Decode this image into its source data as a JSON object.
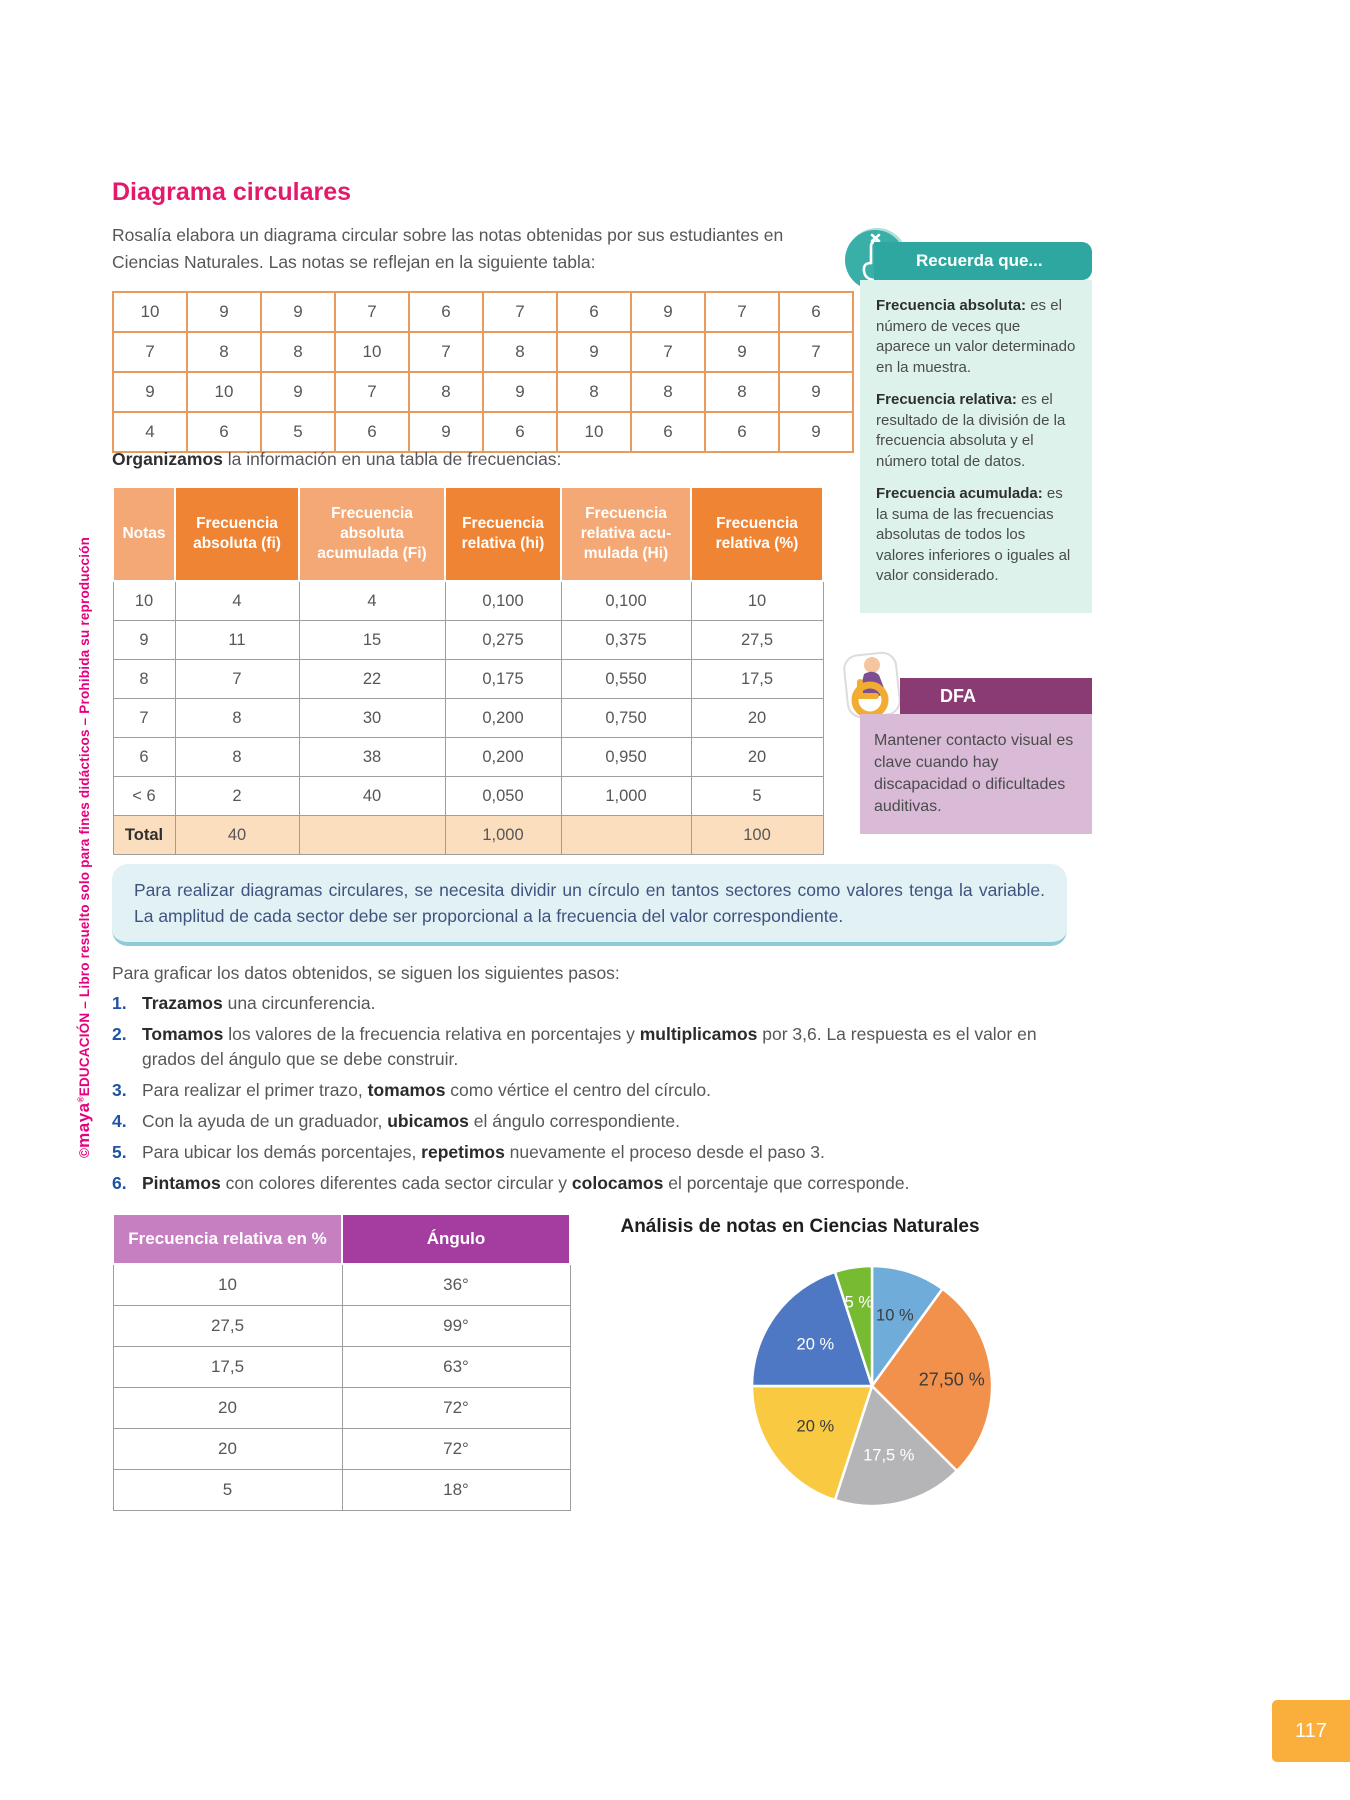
{
  "page": {
    "number": "117"
  },
  "side": {
    "copy": "©",
    "brand": "maya",
    "reg": "®",
    "org": "EDUCACIÓN",
    "rest": " – Libro resuelto solo para fines didácticos – Prohibida su reproducción"
  },
  "title": "Diagrama circulares",
  "intro": "Rosalía elabora un diagrama circular sobre las notas obtenidas por sus estudiantes en Ciencias Naturales. Las notas se reflejan en la siguiente tabla:",
  "grades_table": {
    "rows": [
      [
        "10",
        "9",
        "9",
        "7",
        "6",
        "7",
        "6",
        "9",
        "7",
        "6"
      ],
      [
        "7",
        "8",
        "8",
        "10",
        "7",
        "8",
        "9",
        "7",
        "9",
        "7"
      ],
      [
        "9",
        "10",
        "9",
        "7",
        "8",
        "9",
        "8",
        "8",
        "8",
        "9"
      ],
      [
        "4",
        "6",
        "5",
        "6",
        "9",
        "6",
        "10",
        "6",
        "6",
        "9"
      ]
    ]
  },
  "organize": {
    "bold": "Organizamos",
    "rest": " la información en una tabla de frecuencias:"
  },
  "frequency_table": {
    "headers": [
      "Notas",
      "Frecuencia absoluta (fi)",
      "Frecuencia absoluta acumulada (Fi)",
      "Frecuencia relativa (hi)",
      "Frecuencia relativa acu-mulada (Hi)",
      "Frecuencia relativa (%)"
    ],
    "rows": [
      [
        "10",
        "4",
        "4",
        "0,100",
        "0,100",
        "10"
      ],
      [
        "9",
        "11",
        "15",
        "0,275",
        "0,375",
        "27,5"
      ],
      [
        "8",
        "7",
        "22",
        "0,175",
        "0,550",
        "17,5"
      ],
      [
        "7",
        "8",
        "30",
        "0,200",
        "0,750",
        "20"
      ],
      [
        "6",
        "8",
        "38",
        "0,200",
        "0,950",
        "20"
      ],
      [
        "< 6",
        "2",
        "40",
        "0,050",
        "1,000",
        "5"
      ]
    ],
    "total_row": [
      "Total",
      "40",
      "",
      "1,000",
      "",
      "100"
    ]
  },
  "sidebar": {
    "recuerda": {
      "title": "Recuerda que...",
      "paragraphs": [
        {
          "lead": "Frecuencia absoluta:",
          "text": "es el número de veces que aparece un valor determinado en la muestra."
        },
        {
          "lead": "Frecuencia relativa:",
          "text": "es el resultado de la división de la frecuencia absoluta y el número total de datos."
        },
        {
          "lead": "Frecuencia acumulada:",
          "text": "es la suma de las frecuencias absolutas de todos los valores inferiores o iguales al valor considerado."
        }
      ]
    },
    "dfa": {
      "title": "DFA",
      "text": "Mantener contacto visual es clave cuando hay discapacidad o dificultades auditivas."
    }
  },
  "callout": "Para realizar diagramas circulares, se necesita dividir un círculo en tantos sectores como valores tenga la variable. La amplitud de cada sector debe ser proporcional a la frecuencia del valor correspondiente.",
  "steps_intro": "Para graficar los datos obtenidos, se siguen los siguientes pasos:",
  "steps": [
    [
      {
        "b": "Trazamos"
      },
      {
        "t": " una circunferencia."
      }
    ],
    [
      {
        "b": "Tomamos"
      },
      {
        "t": " los valores de la frecuencia relativa en porcentajes y "
      },
      {
        "b": "multiplicamos"
      },
      {
        "t": " por 3,6. La respuesta es el valor en grados del ángulo que se debe construir."
      }
    ],
    [
      {
        "t": "Para realizar el primer trazo, "
      },
      {
        "b": "tomamos"
      },
      {
        "t": " como vértice el centro del círculo."
      }
    ],
    [
      {
        "t": "Con la ayuda de un graduador, "
      },
      {
        "b": "ubicamos"
      },
      {
        "t": " el ángulo correspondiente."
      }
    ],
    [
      {
        "t": "Para ubicar los demás porcentajes, "
      },
      {
        "b": "repetimos"
      },
      {
        "t": " nuevamente el proceso desde el paso 3."
      }
    ],
    [
      {
        "b": "Pintamos"
      },
      {
        "t": " con colores diferentes cada sector circular y "
      },
      {
        "b": "colocamos"
      },
      {
        "t": " el porcentaje que corresponde."
      }
    ]
  ],
  "angle_table": {
    "headers": [
      "Frecuencia relativa en %",
      "Ángulo"
    ],
    "rows": [
      [
        "10",
        "36°"
      ],
      [
        "27,5",
        "99°"
      ],
      [
        "17,5",
        "63°"
      ],
      [
        "20",
        "72°"
      ],
      [
        "20",
        "72°"
      ],
      [
        "5",
        "18°"
      ]
    ]
  },
  "chart": {
    "title": "Análisis de notas en Ciencias Naturales",
    "slices": [
      {
        "label": "10 %",
        "value": 10,
        "angle": 36,
        "color": "#6FACD9",
        "label_light": false
      },
      {
        "label": "27,50 %",
        "value": 27.5,
        "angle": 99,
        "color": "#F1914B",
        "label_light": false
      },
      {
        "label": "17,5 %",
        "value": 17.5,
        "angle": 63,
        "color": "#B5B5B7",
        "label_light": true
      },
      {
        "label": "20 %",
        "value": 20,
        "angle": 72,
        "color": "#F9C941",
        "label_light": false
      },
      {
        "label": "20 %",
        "value": 20,
        "angle": 72,
        "color": "#4E78C3",
        "label_light": true
      },
      {
        "label": "5 %",
        "value": 5,
        "angle": 18,
        "color": "#77BB33",
        "label_light": true
      }
    ]
  },
  "chart_data": {
    "type": "pie",
    "title": "Análisis de notas en Ciencias Naturales",
    "labels": [
      "10 %",
      "27,50 %",
      "17,5 %",
      "20 %",
      "20 %",
      "5 %"
    ],
    "values": [
      10,
      27.5,
      17.5,
      20,
      20,
      5
    ],
    "angles_deg": [
      36,
      99,
      63,
      72,
      72,
      18
    ],
    "colors": [
      "#6FACD9",
      "#F1914B",
      "#B5B5B7",
      "#F9C941",
      "#4E78C3",
      "#77BB33"
    ],
    "start_angle": "12 o'clock, clockwise",
    "legend": "none (labels inside slices)"
  },
  "accent_colors": {
    "title_pink": "#E5196B",
    "side_text_pink": "#E5007E",
    "table_border_orange": "#E89B5C",
    "header_orange_dark": "#EF8435",
    "header_orange_light": "#F3A876",
    "total_row_bg": "#FBDEBD",
    "recuerda_teal": "#2EA7A0",
    "recuerda_body": "#DCF2EB",
    "dfa_purple": "#8B3B74",
    "dfa_body": "#D9BAD7",
    "callout_bg": "#E2F1F4",
    "angle_purple_light": "#C680C2",
    "angle_purple_dark": "#A53C9F",
    "step_number_blue": "#1F53A5",
    "page_tab_yellow": "#FAAE3C"
  }
}
